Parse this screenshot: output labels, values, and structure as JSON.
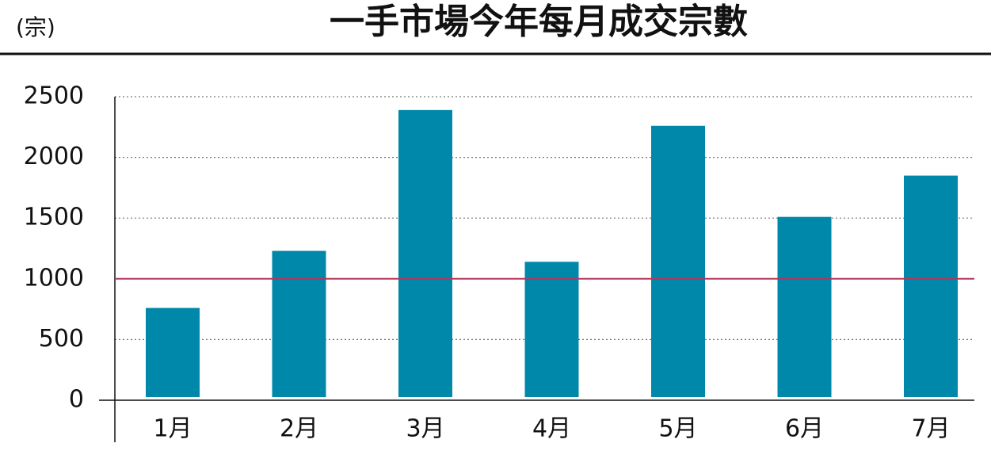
{
  "chart_data": {
    "type": "bar",
    "title": "一手市場今年每月成交宗數",
    "y_label": "(宗)",
    "categories": [
      "1月",
      "2月",
      "3月",
      "4月",
      "5月",
      "6月",
      "7月"
    ],
    "values": [
      760,
      1230,
      2390,
      1140,
      2260,
      1510,
      1850
    ],
    "color": "#0088aa",
    "ylim": [
      0,
      2500
    ],
    "yticks": [
      0,
      500,
      1000,
      1500,
      2000,
      2500
    ],
    "grid": true,
    "reference_line": {
      "value": 1000,
      "color": "#b5365a"
    }
  }
}
